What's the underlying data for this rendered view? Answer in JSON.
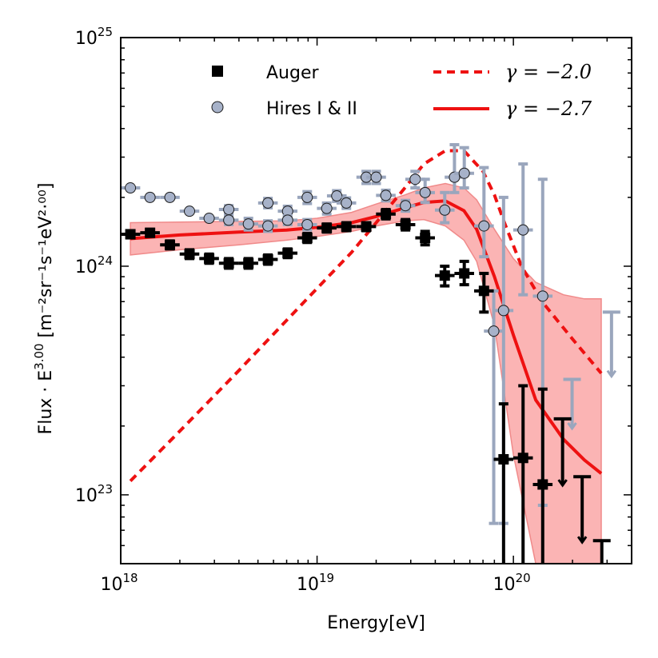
{
  "chart_data": {
    "type": "scatter",
    "title": "",
    "xlabel": "Energy[eV]",
    "ylabel_main": "Flux · E",
    "ylabel_exp": "3.00",
    "ylabel_units": "[m⁻²sr⁻¹s⁻¹eV²·⁰⁰]",
    "xscale": "log",
    "yscale": "log",
    "xlim": [
      1e+18,
      4e+20
    ],
    "ylim": [
      5e+22,
      1e+25
    ],
    "x_ticks": [
      {
        "value": 1e+18,
        "base": "10",
        "exp": "18"
      },
      {
        "value": 1e+19,
        "base": "10",
        "exp": "19"
      },
      {
        "value": 1e+20,
        "base": "10",
        "exp": "20"
      }
    ],
    "y_ticks": [
      {
        "value": 1e+23,
        "base": "10",
        "exp": "23"
      },
      {
        "value": 1e+24,
        "base": "10",
        "exp": "24"
      },
      {
        "value": 1e+25,
        "base": "10",
        "exp": "25"
      }
    ],
    "legend": {
      "placement": "top",
      "entries": [
        {
          "label": "Auger",
          "kind": "marker-square"
        },
        {
          "label": "Hires I & II",
          "kind": "marker-circle"
        },
        {
          "label": "γ = −2.0",
          "kind": "line-dashed"
        },
        {
          "label": "γ = −2.7",
          "kind": "line-solid"
        }
      ]
    },
    "colors": {
      "auger": "#000000",
      "hires_fill": "#a7b2c9",
      "hires_err": "#9aa6bd",
      "model": "#ee1111",
      "band_fill": "#fbb4b4",
      "band_edge": "#f08a8a"
    },
    "series": [
      {
        "name": "Auger",
        "marker": "square",
        "points": [
          {
            "x": 1.12e+18,
            "y": 1.38e+24,
            "ylo": 1.33e+24,
            "yhi": 1.43e+24
          },
          {
            "x": 1.41e+18,
            "y": 1.4e+24,
            "ylo": 1.35e+24,
            "yhi": 1.45e+24
          },
          {
            "x": 1.78e+18,
            "y": 1.24e+24,
            "ylo": 1.19e+24,
            "yhi": 1.29e+24
          },
          {
            "x": 2.24e+18,
            "y": 1.13e+24,
            "ylo": 1.08e+24,
            "yhi": 1.18e+24
          },
          {
            "x": 2.82e+18,
            "y": 1.08e+24,
            "ylo": 1.03e+24,
            "yhi": 1.13e+24
          },
          {
            "x": 3.55e+18,
            "y": 1.03e+24,
            "ylo": 9.8e+23,
            "yhi": 1.08e+24
          },
          {
            "x": 4.47e+18,
            "y": 1.03e+24,
            "ylo": 9.8e+23,
            "yhi": 1.08e+24
          },
          {
            "x": 5.62e+18,
            "y": 1.07e+24,
            "ylo": 1.02e+24,
            "yhi": 1.12e+24
          },
          {
            "x": 7.08e+18,
            "y": 1.14e+24,
            "ylo": 1.09e+24,
            "yhi": 1.19e+24
          },
          {
            "x": 8.91e+18,
            "y": 1.33e+24,
            "ylo": 1.27e+24,
            "yhi": 1.39e+24
          },
          {
            "x": 1.12e+19,
            "y": 1.47e+24,
            "ylo": 1.41e+24,
            "yhi": 1.53e+24
          },
          {
            "x": 1.41e+19,
            "y": 1.49e+24,
            "ylo": 1.43e+24,
            "yhi": 1.55e+24
          },
          {
            "x": 1.78e+19,
            "y": 1.49e+24,
            "ylo": 1.43e+24,
            "yhi": 1.55e+24
          },
          {
            "x": 2.24e+19,
            "y": 1.69e+24,
            "ylo": 1.61e+24,
            "yhi": 1.77e+24
          },
          {
            "x": 2.82e+19,
            "y": 1.52e+24,
            "ylo": 1.44e+24,
            "yhi": 1.6e+24
          },
          {
            "x": 3.55e+19,
            "y": 1.33e+24,
            "ylo": 1.24e+24,
            "yhi": 1.42e+24
          },
          {
            "x": 4.47e+19,
            "y": 9.1e+23,
            "ylo": 8.2e+23,
            "yhi": 1e+24
          },
          {
            "x": 5.62e+19,
            "y": 9.3e+23,
            "ylo": 8.3e+23,
            "yhi": 1.05e+24
          },
          {
            "x": 7.08e+19,
            "y": 7.8e+23,
            "ylo": 6.3e+23,
            "yhi": 9.3e+23
          },
          {
            "x": 8.91e+19,
            "y": 1.43e+23,
            "ylo": 5e+22,
            "yhi": 2.5e+23
          },
          {
            "x": 1.12e+20,
            "y": 1.45e+23,
            "ylo": 5e+22,
            "yhi": 3e+23
          },
          {
            "x": 1.41e+20,
            "y": 1.11e+23,
            "ylo": 5e+22,
            "yhi": 2.9e+23
          }
        ]
      },
      {
        "name": "Auger upper limits",
        "marker": "limit",
        "points": [
          {
            "x": 1.78e+20,
            "y": 2.15e+23,
            "ylo": 1.1e+23
          },
          {
            "x": 2.24e+20,
            "y": 1.2e+23,
            "ylo": 6.2e+22
          },
          {
            "x": 2.82e+20,
            "y": 6.3e+22,
            "ylo": 5e+22
          }
        ]
      },
      {
        "name": "Hires I & II",
        "marker": "circle",
        "points": [
          {
            "x": 1.12e+18,
            "y": 2.2e+24,
            "ylo": 2.2e+24,
            "yhi": 2.2e+24
          },
          {
            "x": 1.41e+18,
            "y": 2e+24,
            "ylo": 2e+24,
            "yhi": 2e+24
          },
          {
            "x": 1.78e+18,
            "y": 2e+24,
            "ylo": 2e+24,
            "yhi": 2e+24
          },
          {
            "x": 2.24e+18,
            "y": 1.74e+24,
            "ylo": 1.74e+24,
            "yhi": 1.74e+24
          },
          {
            "x": 2.82e+18,
            "y": 1.62e+24,
            "ylo": 1.62e+24,
            "yhi": 1.62e+24
          },
          {
            "x": 3.55e+18,
            "y": 1.59e+24,
            "ylo": 1.52e+24,
            "yhi": 1.66e+24
          },
          {
            "x": 3.55e+18,
            "y": 1.77e+24,
            "ylo": 1.7e+24,
            "yhi": 1.84e+24
          },
          {
            "x": 4.47e+18,
            "y": 1.53e+24,
            "ylo": 1.44e+24,
            "yhi": 1.62e+24
          },
          {
            "x": 5.62e+18,
            "y": 1.89e+24,
            "ylo": 1.8e+24,
            "yhi": 1.98e+24
          },
          {
            "x": 5.62e+18,
            "y": 1.5e+24,
            "ylo": 1.42e+24,
            "yhi": 1.58e+24
          },
          {
            "x": 7.08e+18,
            "y": 1.74e+24,
            "ylo": 1.65e+24,
            "yhi": 1.83e+24
          },
          {
            "x": 7.08e+18,
            "y": 1.59e+24,
            "ylo": 1.52e+24,
            "yhi": 1.66e+24
          },
          {
            "x": 8.91e+18,
            "y": 2e+24,
            "ylo": 1.88e+24,
            "yhi": 2.12e+24
          },
          {
            "x": 8.91e+18,
            "y": 1.52e+24,
            "ylo": 1.44e+24,
            "yhi": 1.6e+24
          },
          {
            "x": 1.12e+19,
            "y": 1.79e+24,
            "ylo": 1.69e+24,
            "yhi": 1.89e+24
          },
          {
            "x": 1.26e+19,
            "y": 2.03e+24,
            "ylo": 1.92e+24,
            "yhi": 2.14e+24
          },
          {
            "x": 1.41e+19,
            "y": 1.89e+24,
            "ylo": 1.79e+24,
            "yhi": 1.99e+24
          },
          {
            "x": 1.78e+19,
            "y": 2.45e+24,
            "ylo": 2.3e+24,
            "yhi": 2.6e+24
          },
          {
            "x": 2e+19,
            "y": 2.45e+24,
            "ylo": 2.3e+24,
            "yhi": 2.6e+24
          },
          {
            "x": 2.24e+19,
            "y": 2.04e+24,
            "ylo": 1.93e+24,
            "yhi": 2.15e+24
          },
          {
            "x": 2.82e+19,
            "y": 1.84e+24,
            "ylo": 1.74e+24,
            "yhi": 1.94e+24
          },
          {
            "x": 3.16e+19,
            "y": 2.4e+24,
            "ylo": 2.2e+24,
            "yhi": 2.6e+24
          },
          {
            "x": 3.55e+19,
            "y": 2.1e+24,
            "ylo": 1.9e+24,
            "yhi": 2.4e+24
          },
          {
            "x": 4.47e+19,
            "y": 1.76e+24,
            "ylo": 1.55e+24,
            "yhi": 2.1e+24
          },
          {
            "x": 5.01e+19,
            "y": 2.45e+24,
            "ylo": 2.1e+24,
            "yhi": 3.4e+24
          },
          {
            "x": 5.62e+19,
            "y": 2.55e+24,
            "ylo": 2.2e+24,
            "yhi": 3.3e+24
          },
          {
            "x": 7.08e+19,
            "y": 1.5e+24,
            "ylo": 1.1e+24,
            "yhi": 2.7e+24
          },
          {
            "x": 7.94e+19,
            "y": 5.2e+23,
            "ylo": 7.5e+22,
            "yhi": 7.8e+23
          },
          {
            "x": 8.91e+19,
            "y": 6.4e+23,
            "ylo": 7.5e+22,
            "yhi": 2e+24
          },
          {
            "x": 1.12e+20,
            "y": 1.44e+24,
            "ylo": 7.5e+23,
            "yhi": 2.8e+24
          },
          {
            "x": 1.41e+20,
            "y": 7.4e+23,
            "ylo": 9e+22,
            "yhi": 2.4e+24
          }
        ]
      },
      {
        "name": "Hires upper limits",
        "marker": "limit",
        "points": [
          {
            "x": 1.99e+20,
            "y": 3.2e+23,
            "ylo": 1.95e+23
          },
          {
            "x": 3.16e+20,
            "y": 6.3e+23,
            "ylo": 3.3e+23
          }
        ]
      },
      {
        "name": "γ = −2.0",
        "style": "dashed",
        "x": [
          1.12e+18,
          2e+18,
          4e+18,
          7e+18,
          1e+19,
          1.5e+19,
          2e+19,
          2.8e+19,
          3.5e+19,
          4.5e+19,
          5.6e+19,
          7e+19,
          8e+19,
          9e+19,
          1.1e+20,
          1.4e+20,
          2e+20,
          2.8e+20
        ],
        "y": [
          1.15e+23,
          1.9e+23,
          3.5e+23,
          5.8e+23,
          8e+23,
          1.15e+24,
          1.55e+24,
          2.2e+24,
          2.8e+24,
          3.2e+24,
          3.2e+24,
          2.6e+24,
          2.05e+24,
          1.55e+24,
          1e+24,
          7e+23,
          4.8e+23,
          3.4e+23
        ]
      },
      {
        "name": "γ = −2.7",
        "style": "solid",
        "x": [
          1.12e+18,
          2e+18,
          4e+18,
          7e+18,
          1e+19,
          1.5e+19,
          2e+19,
          2.8e+19,
          3.5e+19,
          4.5e+19,
          5.6e+19,
          6.5e+19,
          8e+19,
          1e+20,
          1.3e+20,
          1.8e+20,
          2.3e+20,
          2.8e+20
        ],
        "y": [
          1.32e+24,
          1.37e+24,
          1.41e+24,
          1.44e+24,
          1.48e+24,
          1.55e+24,
          1.65e+24,
          1.8e+24,
          1.9e+24,
          1.93e+24,
          1.75e+24,
          1.45e+24,
          9e+23,
          5e+23,
          2.6e+23,
          1.75e+23,
          1.42e+23,
          1.24e+23
        ]
      },
      {
        "name": "band",
        "style": "band",
        "x": [
          1.12e+18,
          2e+18,
          4e+18,
          7e+18,
          1e+19,
          1.5e+19,
          2e+19,
          2.8e+19,
          3.5e+19,
          4.5e+19,
          5.6e+19,
          6.5e+19,
          8e+19,
          1e+20,
          1.3e+20,
          1.8e+20,
          2.3e+20,
          2.8e+20
        ],
        "upper": [
          1.55e+24,
          1.56e+24,
          1.57e+24,
          1.58e+24,
          1.62e+24,
          1.72e+24,
          1.87e+24,
          2.05e+24,
          2.2e+24,
          2.3e+24,
          2.2e+24,
          1.95e+24,
          1.45e+24,
          1.08e+24,
          8.5e+23,
          7.5e+23,
          7.2e+23,
          7.2e+23
        ],
        "lower": [
          1.12e+24,
          1.18e+24,
          1.24e+24,
          1.3e+24,
          1.35e+24,
          1.42e+24,
          1.5e+24,
          1.58e+24,
          1.6e+24,
          1.5e+24,
          1.3e+24,
          1.05e+24,
          5.5e+23,
          1.5e+23,
          5e+22,
          5e+22,
          5e+22,
          5e+22
        ]
      }
    ]
  }
}
